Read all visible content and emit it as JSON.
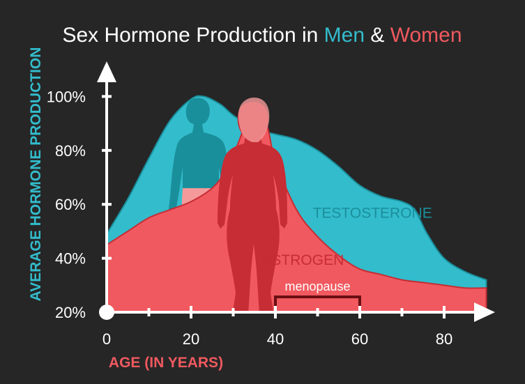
{
  "colors": {
    "background": "#262626",
    "teal": "#33bccc",
    "teal_dark": "#1a8f9c",
    "red": "#f0595f",
    "red_dark": "#c62d34",
    "pink": "#f59a9a",
    "menopause": "#6b0f14",
    "white": "#ffffff"
  },
  "chart_data": {
    "type": "area",
    "title": {
      "prefix": "Sex Hormone Production in ",
      "men": "Men",
      "amp": " & ",
      "women": "Women"
    },
    "xlabel": "AGE (IN YEARS)",
    "ylabel": "AVERAGE HORMONE PRODUCTION",
    "xlim": [
      0,
      90
    ],
    "ylim": [
      20,
      100
    ],
    "x_ticks": [
      0,
      20,
      40,
      60,
      80
    ],
    "x_tick_labels": [
      "0",
      "20",
      "40",
      "60",
      "80"
    ],
    "x_minor_ticks": [
      10,
      30,
      50,
      70
    ],
    "y_ticks": [
      20,
      40,
      60,
      80,
      100
    ],
    "y_tick_labels": [
      "20%",
      "40%",
      "60%",
      "80%",
      "100%"
    ],
    "series": [
      {
        "name": "TESTOSTERONE",
        "color": "#33bccc",
        "x": [
          0,
          5,
          10,
          15,
          20,
          23,
          27,
          30,
          35,
          40,
          45,
          50,
          55,
          60,
          65,
          70,
          73,
          76,
          80,
          85,
          90
        ],
        "y": [
          49,
          62,
          77,
          91,
          99,
          100,
          97,
          93,
          88,
          86,
          84,
          80,
          74,
          67,
          63,
          61,
          58,
          49,
          40,
          35,
          32
        ]
      },
      {
        "name": "ESTROGEN",
        "color": "#f0595f",
        "x": [
          0,
          5,
          10,
          15,
          20,
          25,
          28,
          31,
          33,
          35,
          38,
          40,
          45,
          50,
          55,
          60,
          65,
          70,
          75,
          80,
          85,
          90
        ],
        "y": [
          45,
          50,
          55,
          58,
          61,
          66,
          72,
          82,
          90,
          94,
          89,
          76,
          58,
          48,
          41,
          36,
          34,
          32,
          31,
          30,
          29,
          29
        ]
      }
    ],
    "annotations": [
      {
        "text": "menopause",
        "x_start": 40,
        "x_end": 60
      }
    ]
  }
}
